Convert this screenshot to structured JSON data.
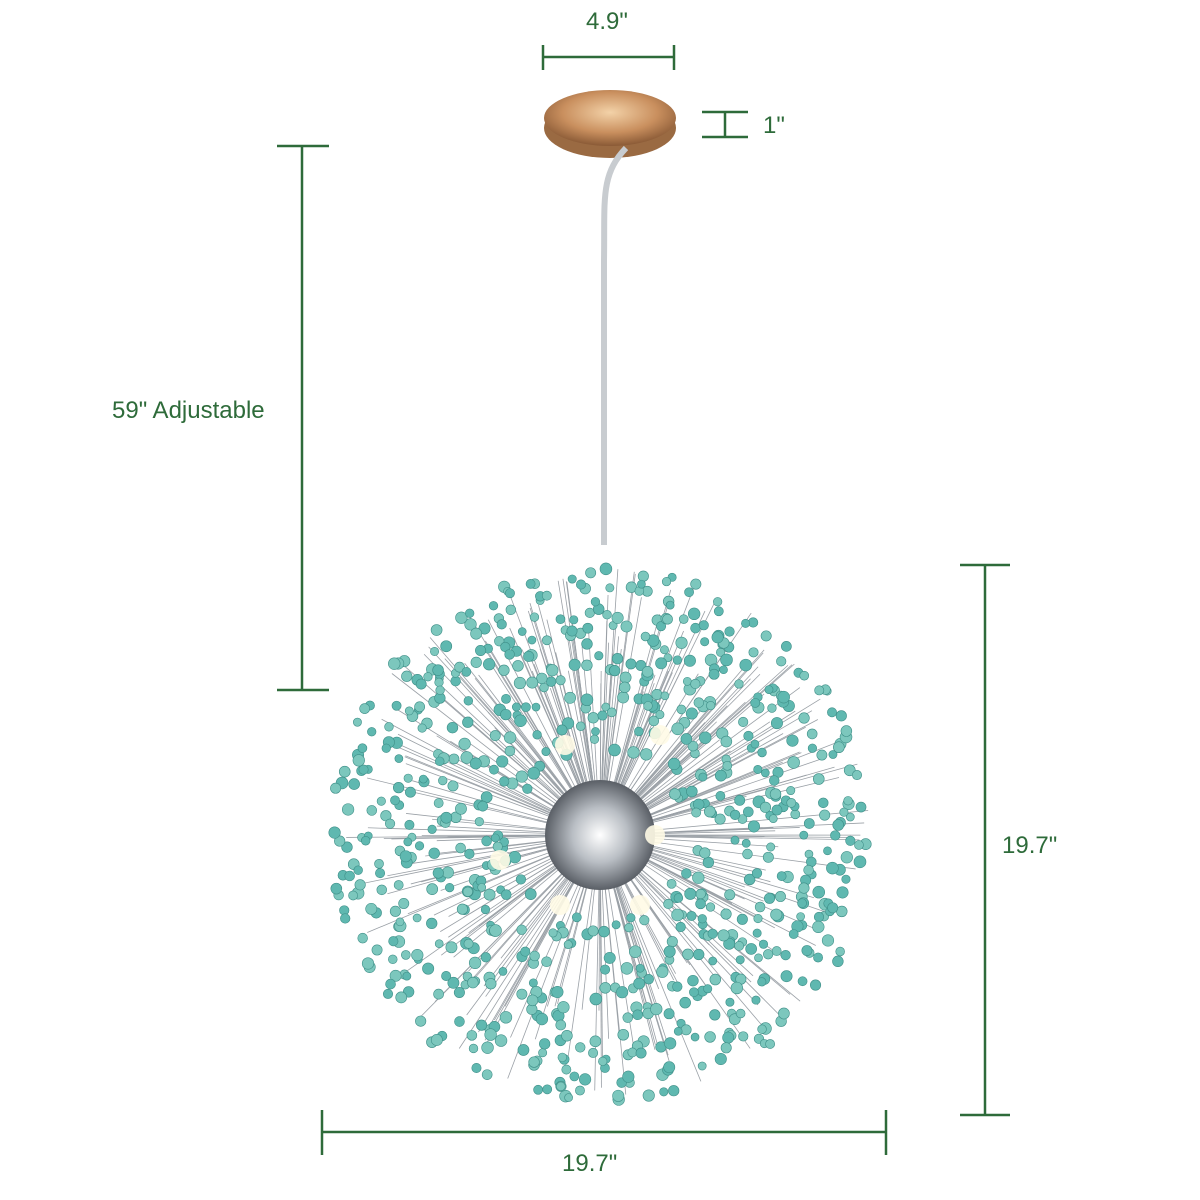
{
  "dimensions": {
    "canopy_width": "4.9\"",
    "canopy_height": "1\"",
    "cord_length": "59\" Adjustable",
    "fixture_height": "19.7\"",
    "fixture_width": "19.7\""
  },
  "colors": {
    "dimension_line": "#2e6b3a",
    "bead": "#5fb8b0",
    "canopy": "#c98f5e",
    "wire": "#9aa0a6"
  }
}
